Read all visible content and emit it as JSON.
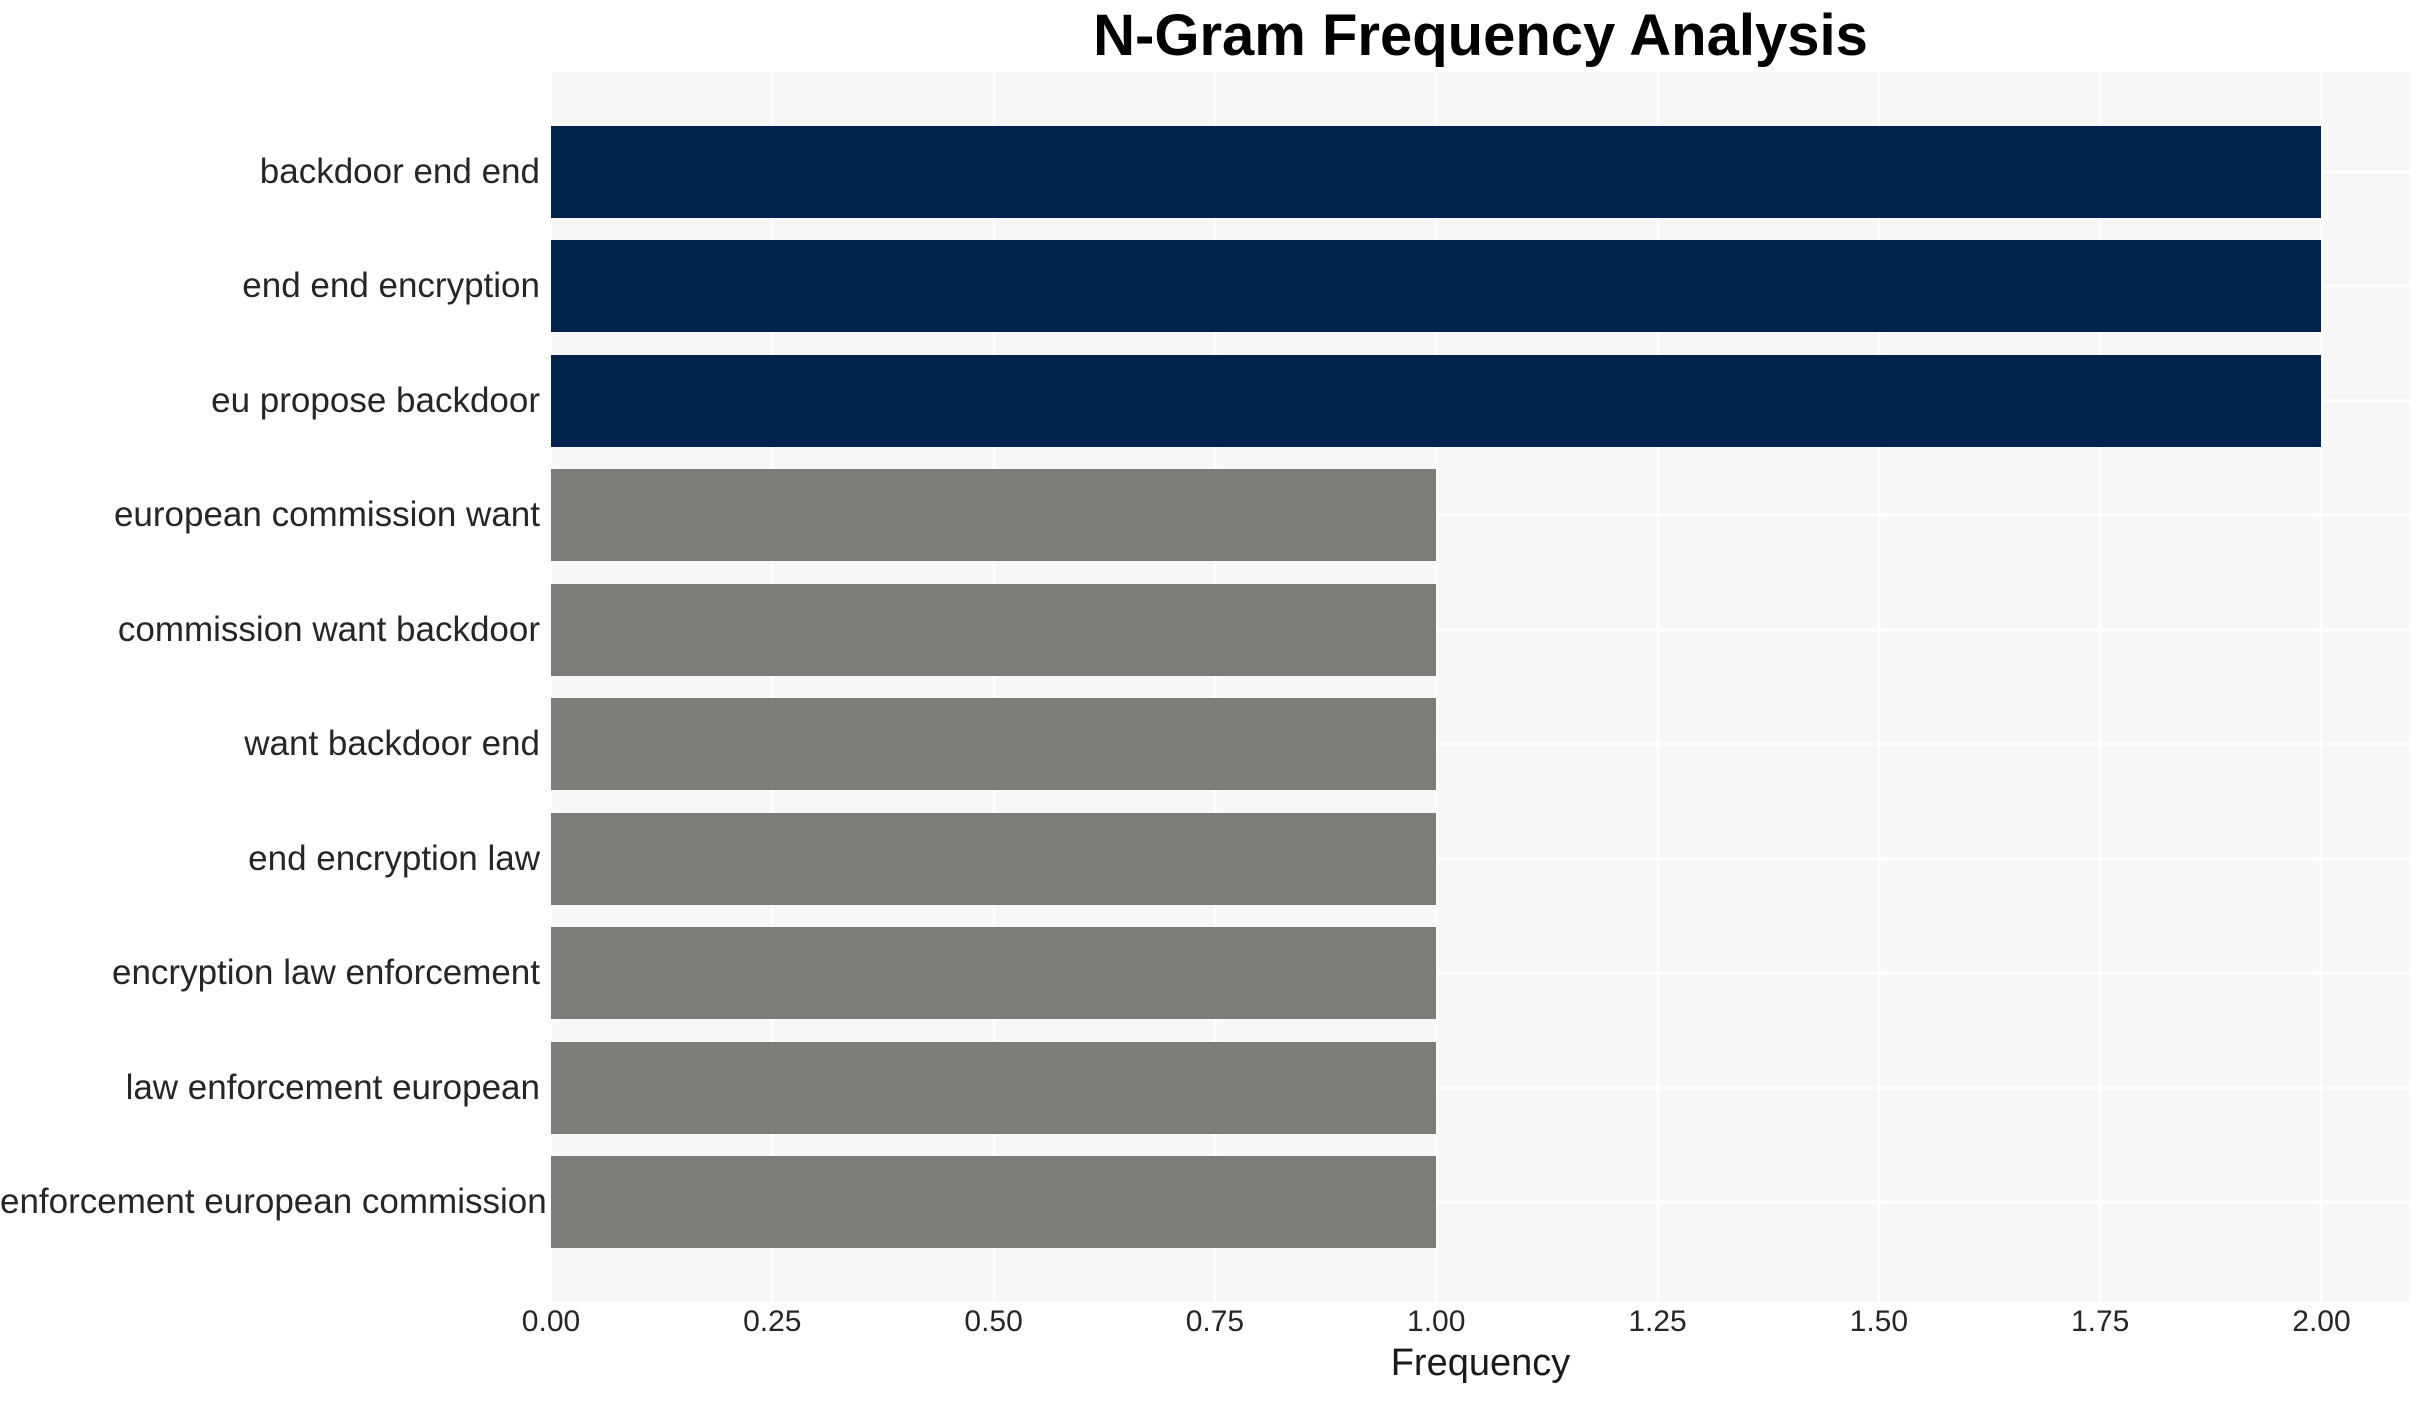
{
  "chart_data": {
    "type": "bar",
    "orientation": "horizontal",
    "title": "N-Gram Frequency Analysis",
    "xlabel": "Frequency",
    "ylabel": "",
    "categories": [
      "backdoor end end",
      "end end encryption",
      "eu propose backdoor",
      "european commission want",
      "commission want backdoor",
      "want backdoor end",
      "end encryption law",
      "encryption law enforcement",
      "law enforcement european",
      "enforcement european commission"
    ],
    "values": [
      2,
      2,
      2,
      1,
      1,
      1,
      1,
      1,
      1,
      1
    ],
    "bar_colors": [
      "#02234e",
      "#02234e",
      "#02234e",
      "#7c7c78",
      "#7c7c78",
      "#7c7c78",
      "#7c7c78",
      "#7c7c78",
      "#7c7c78",
      "#7c7c78"
    ],
    "xlim": [
      0,
      2.1
    ],
    "xticks": [
      "0.00",
      "0.25",
      "0.50",
      "0.75",
      "1.00",
      "1.25",
      "1.50",
      "1.75",
      "2.00"
    ],
    "xtick_values": [
      0,
      0.25,
      0.5,
      0.75,
      1.0,
      1.25,
      1.5,
      1.75,
      2.0
    ],
    "grid": true,
    "legend": "none",
    "colors": {
      "highlight_bar": "#02234e",
      "default_bar": "#7c7c78",
      "plot_background": "#f7f7f7",
      "gridline": "#ffffff",
      "figure_background": "#ffffff",
      "title_text": "#000000",
      "tick_text": "#262626"
    }
  }
}
